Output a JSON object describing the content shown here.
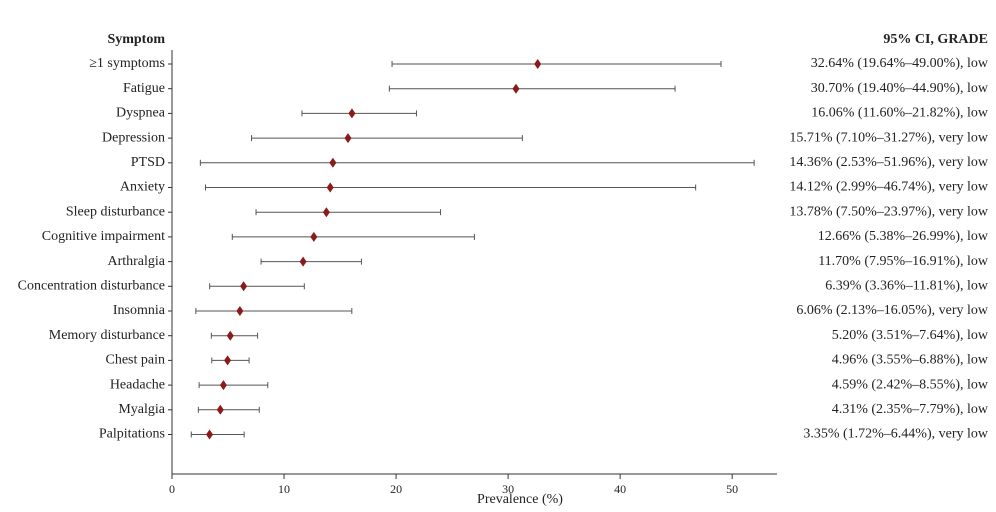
{
  "chart_data": {
    "type": "forest",
    "category_header": "Symptom",
    "label_header": "95% CI, GRADE",
    "x_label": "Prevalence (%)",
    "categories": [
      "≥1 symptoms",
      "Fatigue",
      "Dyspnea",
      "Depression",
      "PTSD",
      "Anxiety",
      "Sleep disturbance",
      "Cognitive impairment",
      "Arthralgia",
      "Concentration disturbance",
      "Insomnia",
      "Memory disturbance",
      "Chest pain",
      "Headache",
      "Myalgia",
      "Palpitations"
    ],
    "values": [
      32.64,
      30.7,
      16.06,
      15.71,
      14.36,
      14.12,
      13.78,
      12.66,
      11.7,
      6.39,
      6.06,
      5.2,
      4.96,
      4.59,
      4.31,
      3.35
    ],
    "lower": [
      19.64,
      19.4,
      11.6,
      7.1,
      2.53,
      2.99,
      7.5,
      5.38,
      7.95,
      3.36,
      2.13,
      3.51,
      3.55,
      2.42,
      2.35,
      1.72
    ],
    "upper": [
      49.0,
      44.9,
      21.82,
      31.27,
      51.96,
      46.74,
      23.97,
      26.99,
      16.91,
      11.81,
      16.05,
      7.64,
      6.88,
      8.55,
      7.79,
      6.44
    ],
    "value_labels": [
      "32.64% (19.64%–49.00%), low",
      "30.70% (19.40%–44.90%), low",
      "16.06% (11.60%–21.82%), low",
      "15.71% (7.10%–31.27%), very low",
      "14.36% (2.53%–51.96%), very low",
      "14.12% (2.99%–46.74%), very low",
      "13.78% (7.50%–23.97%), very low",
      "12.66% (5.38%–26.99%), low",
      "11.70% (7.95%–16.91%), low",
      "6.39% (3.36%–11.81%), low",
      "6.06% (2.13%–16.05%), very low",
      "5.20% (3.51%–7.64%), low",
      "4.96% (3.55%–6.88%), low",
      "4.59% (2.42%–8.55%), low",
      "4.31% (2.35%–7.79%), low",
      "3.35% (1.72%–6.44%), very low"
    ],
    "color": "#8b1a1a",
    "ci_color": "#555555",
    "xlim": [
      0,
      54
    ],
    "xticks": [
      0,
      10,
      20,
      30,
      40,
      50
    ]
  }
}
